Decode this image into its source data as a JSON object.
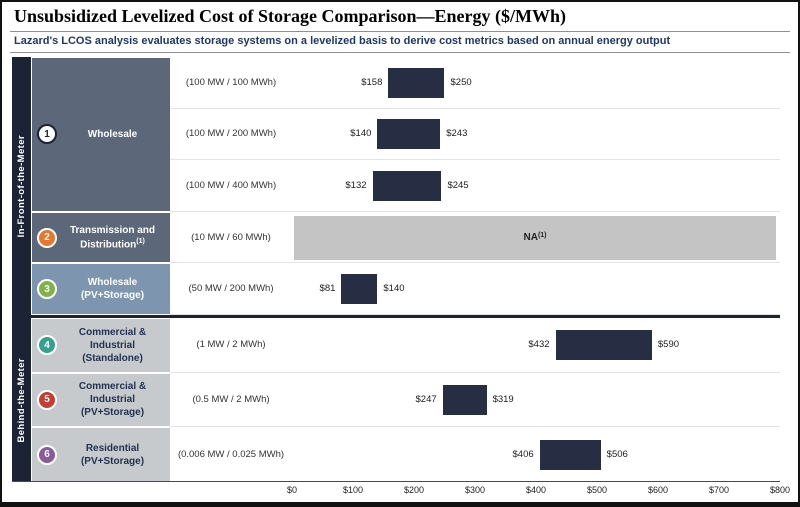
{
  "header": {
    "title": "Unsubsidized Levelized Cost of Storage Comparison—Energy ($/MWh)",
    "subtitle": "Lazard's LCOS analysis evaluates storage systems on a levelized basis to derive cost metrics based on annual energy output"
  },
  "groups": [
    {
      "label": "In-Front-of-the-Meter"
    },
    {
      "label": "Behind-the-Meter"
    }
  ],
  "colors": {
    "bar": "#272e44",
    "na_bar": "#c4c4c4",
    "band": "#1b2335",
    "subtitle_text": "#1f3864"
  },
  "chart_data": {
    "type": "bar",
    "subtype": "horizontal-range",
    "unit": "$/MWh",
    "title": "Unsubsidized Levelized Cost of Storage Comparison—Energy ($/MWh)",
    "xlim": [
      0,
      800
    ],
    "x_ticks": [
      {
        "value": 0,
        "label": "$0"
      },
      {
        "value": 100,
        "label": "$100"
      },
      {
        "value": 200,
        "label": "$200"
      },
      {
        "value": 300,
        "label": "$300"
      },
      {
        "value": 400,
        "label": "$400"
      },
      {
        "value": 500,
        "label": "$500"
      },
      {
        "value": 600,
        "label": "$600"
      },
      {
        "value": 700,
        "label": "$700"
      },
      {
        "value": 800,
        "label": "$800"
      }
    ],
    "sections": [
      {
        "number": "1",
        "group": "In-Front-of-the-Meter",
        "label": "Wholesale",
        "style": {
          "cell_bg": "#5c6879",
          "cell_fg": "#ffffff",
          "circle_bg": "#ffffff",
          "circle_fg": "#1b2335",
          "circle_ring": "#1b2335"
        },
        "rows": [
          {
            "spec": "(100 MW / 100 MWh)",
            "min": 158,
            "max": 250,
            "min_label": "$158",
            "max_label": "$250"
          },
          {
            "spec": "(100 MW / 200 MWh)",
            "min": 140,
            "max": 243,
            "min_label": "$140",
            "max_label": "$243"
          },
          {
            "spec": "(100 MW / 400 MWh)",
            "min": 132,
            "max": 245,
            "min_label": "$132",
            "max_label": "$245"
          }
        ]
      },
      {
        "number": "2",
        "group": "In-Front-of-the-Meter",
        "label": "Transmission and Distribution",
        "label_sup": "(1)",
        "style": {
          "cell_bg": "#5c6879",
          "cell_fg": "#ffffff",
          "circle_bg": "#e8762c",
          "circle_fg": "#ffffff",
          "circle_ring": "#ffffff"
        },
        "rows": [
          {
            "spec": "(10 MW / 60 MWh)",
            "na": true,
            "na_label": "NA",
            "na_sup": "(1)"
          }
        ]
      },
      {
        "number": "3",
        "group": "In-Front-of-the-Meter",
        "label": "Wholesale",
        "label2": "(PV+Storage)",
        "style": {
          "cell_bg": "#7d95af",
          "cell_fg": "#ffffff",
          "circle_bg": "#7fb347",
          "circle_fg": "#ffffff",
          "circle_ring": "#ffffff"
        },
        "rows": [
          {
            "spec": "(50 MW / 200 MWh)",
            "min": 81,
            "max": 140,
            "min_label": "$81",
            "max_label": "$140"
          }
        ]
      },
      {
        "number": "4",
        "group": "Behind-the-Meter",
        "label": "Commercial & Industrial",
        "label2": "(Standalone)",
        "style": {
          "cell_bg": "#c7cacd",
          "cell_fg": "#1f3050",
          "circle_bg": "#35a08e",
          "circle_fg": "#ffffff",
          "circle_ring": "#ffffff"
        },
        "rows": [
          {
            "spec": "(1 MW / 2 MWh)",
            "min": 432,
            "max": 590,
            "min_label": "$432",
            "max_label": "$590"
          }
        ]
      },
      {
        "number": "5",
        "group": "Behind-the-Meter",
        "label": "Commercial & Industrial",
        "label2": "(PV+Storage)",
        "style": {
          "cell_bg": "#c7cacd",
          "cell_fg": "#1f3050",
          "circle_bg": "#c63d33",
          "circle_fg": "#ffffff",
          "circle_ring": "#ffffff"
        },
        "rows": [
          {
            "spec": "(0.5 MW / 2 MWh)",
            "min": 247,
            "max": 319,
            "min_label": "$247",
            "max_label": "$319"
          }
        ]
      },
      {
        "number": "6",
        "group": "Behind-the-Meter",
        "label": "Residential",
        "label2": "(PV+Storage)",
        "style": {
          "cell_bg": "#c7cacd",
          "cell_fg": "#1f3050",
          "circle_bg": "#8a5a9b",
          "circle_fg": "#ffffff",
          "circle_ring": "#ffffff"
        },
        "rows": [
          {
            "spec": "(0.006 MW / 0.025 MWh)",
            "min": 406,
            "max": 506,
            "min_label": "$406",
            "max_label": "$506"
          }
        ]
      }
    ]
  }
}
